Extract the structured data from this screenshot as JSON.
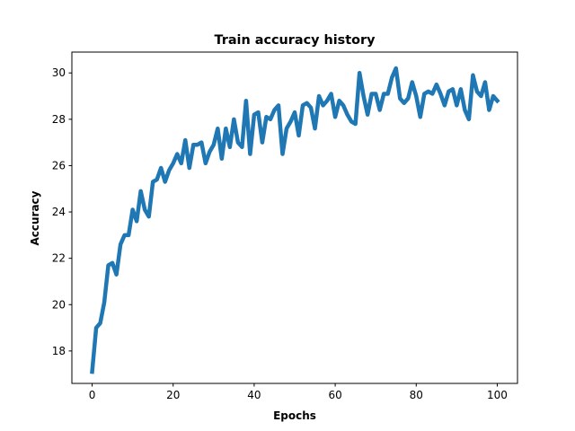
{
  "chart_data": {
    "type": "line",
    "title": "Train accuracy history",
    "xlabel": "Epochs",
    "ylabel": "Accuracy",
    "xlim": [
      -5,
      105
    ],
    "ylim": [
      16.6,
      30.9
    ],
    "xticks": [
      0,
      20,
      40,
      60,
      80,
      100
    ],
    "yticks": [
      18,
      20,
      22,
      24,
      26,
      28,
      30
    ],
    "grid": false,
    "legend": "none",
    "line_color": "#1f77b4",
    "series": [
      {
        "x": [
          0,
          1,
          2,
          3,
          4,
          5,
          6,
          7,
          8,
          9,
          10,
          11,
          12,
          13,
          14,
          15,
          16,
          17,
          18,
          19,
          20,
          21,
          22,
          23,
          24,
          25,
          26,
          27,
          28,
          29,
          30,
          31,
          32,
          33,
          34,
          35,
          36,
          37,
          38,
          39,
          40,
          41,
          42,
          43,
          44,
          45,
          46,
          47,
          48,
          49,
          50,
          51,
          52,
          53,
          54,
          55,
          56,
          57,
          58,
          59,
          60,
          61,
          62,
          63,
          64,
          65,
          66,
          67,
          68,
          69,
          70,
          71,
          72,
          73,
          74,
          75,
          76,
          77,
          78,
          79,
          80,
          81,
          82,
          83,
          84,
          85,
          86,
          87,
          88,
          89,
          90,
          91,
          92,
          93,
          94,
          95,
          96,
          97,
          98,
          99,
          100
        ],
        "values": [
          17.1,
          19.0,
          19.2,
          20.1,
          21.7,
          21.8,
          21.3,
          22.6,
          23.0,
          23.0,
          24.1,
          23.6,
          24.9,
          24.1,
          23.8,
          25.3,
          25.4,
          25.9,
          25.3,
          25.8,
          26.1,
          26.5,
          26.1,
          27.1,
          25.9,
          26.9,
          26.9,
          27.0,
          26.1,
          26.6,
          26.9,
          27.6,
          26.3,
          27.6,
          26.8,
          28.0,
          27.0,
          26.8,
          28.8,
          26.5,
          28.2,
          28.3,
          27.0,
          28.1,
          28.0,
          28.4,
          28.6,
          26.5,
          27.6,
          27.9,
          28.3,
          27.3,
          28.6,
          28.7,
          28.5,
          27.6,
          29.0,
          28.6,
          28.8,
          29.1,
          28.1,
          28.8,
          28.6,
          28.2,
          27.9,
          27.8,
          30.0,
          29.0,
          28.2,
          29.1,
          29.1,
          28.4,
          29.1,
          29.1,
          29.8,
          30.2,
          28.9,
          28.7,
          28.9,
          29.6,
          29.0,
          28.1,
          29.1,
          29.2,
          29.1,
          29.5,
          29.1,
          28.6,
          29.2,
          29.3,
          28.6,
          29.3,
          28.4,
          28.0,
          29.9,
          29.2,
          29.0,
          29.6,
          28.4,
          29.0,
          28.8
        ]
      }
    ]
  }
}
